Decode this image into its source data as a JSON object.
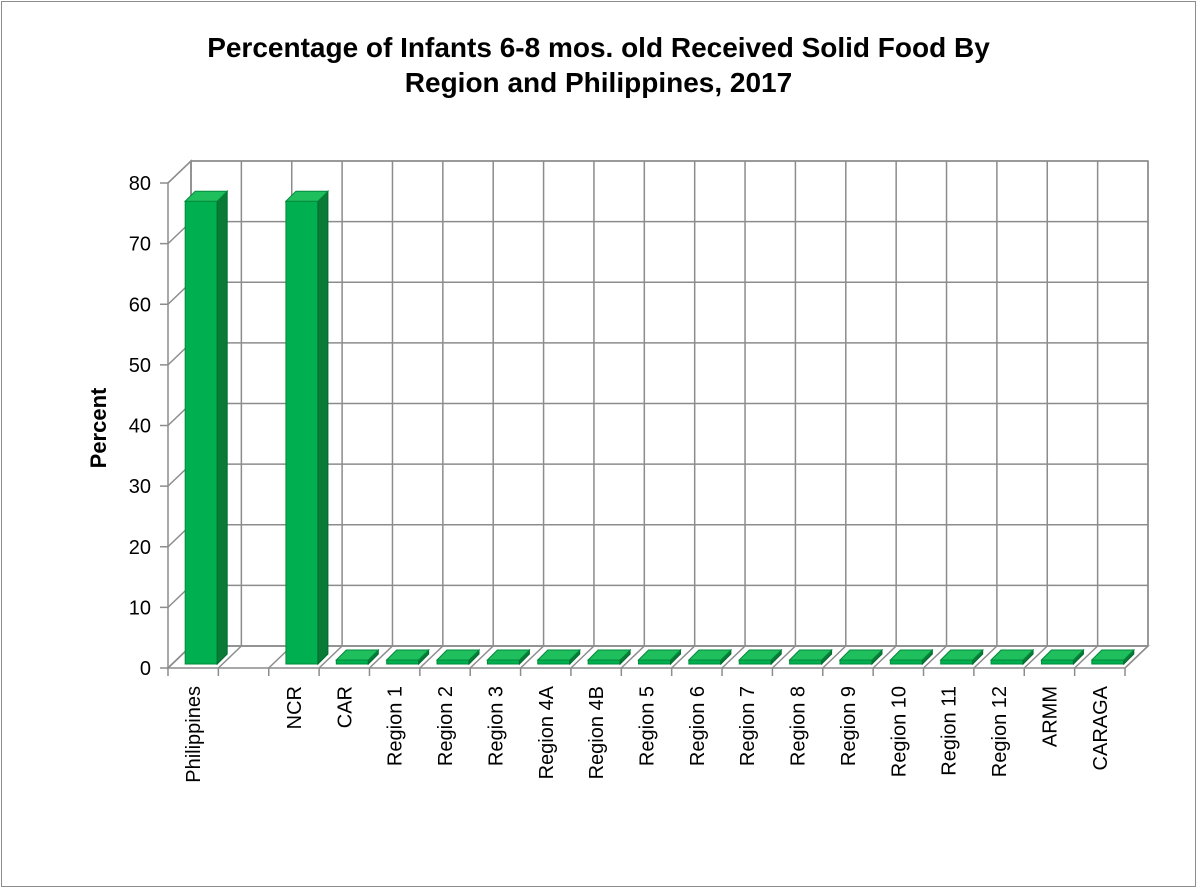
{
  "chart_data": {
    "type": "bar",
    "title_lines": [
      "Percentage of Infants 6-8 mos. old Received Solid Food By",
      "Region and Philippines, 2017"
    ],
    "xlabel": "",
    "ylabel": "Percent",
    "ylim": [
      0,
      80
    ],
    "yticks": [
      0,
      10,
      20,
      30,
      40,
      50,
      60,
      70,
      80
    ],
    "grid": true,
    "legend": "none",
    "three_d": true,
    "bar_color": "#00b050",
    "categories": [
      "Philippines",
      "",
      "NCR",
      "CAR",
      "Region 1",
      "Region 2",
      "Region 3",
      "Region 4A",
      "Region 4B",
      "Region 5",
      "Region 6",
      "Region 7",
      "Region 8",
      "Region 9",
      "Region 10",
      "Region 11",
      "Region 12",
      "ARMM",
      "CARAGA"
    ],
    "series": [
      {
        "values": [
          77,
          null,
          77,
          0,
          0,
          0,
          0,
          0,
          0,
          0,
          0,
          0,
          0,
          0,
          0,
          0,
          0,
          0,
          0
        ]
      }
    ]
  }
}
